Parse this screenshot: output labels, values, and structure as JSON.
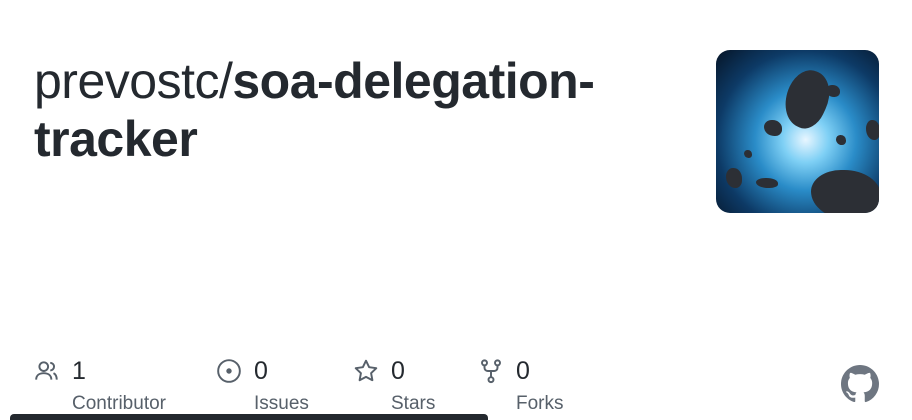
{
  "repo": {
    "owner": "prevostc/",
    "name": "soa-delegation-tracker"
  },
  "stats": [
    {
      "icon": "people-icon",
      "value": "1",
      "label": "Contributor"
    },
    {
      "icon": "issue-icon",
      "value": "0",
      "label": "Issues"
    },
    {
      "icon": "star-icon",
      "value": "0",
      "label": "Stars"
    },
    {
      "icon": "fork-icon",
      "value": "0",
      "label": "Forks"
    }
  ],
  "colors": {
    "text": "#24292f",
    "muted": "#57606a",
    "language_bar": "#24292f",
    "github_logo": "#6e7681"
  }
}
